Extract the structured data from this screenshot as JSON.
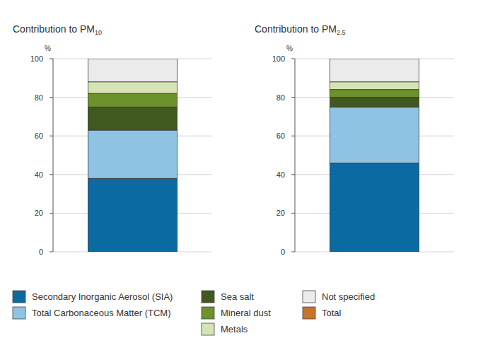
{
  "chart_data": [
    {
      "type": "bar",
      "stacked": true,
      "title": "Contribution to PM10",
      "ylabel": "%",
      "categories": [
        null
      ],
      "ylim": [
        0,
        100
      ],
      "yticks": [
        0,
        20,
        40,
        60,
        80,
        100
      ],
      "grid": true,
      "legend": "bottom",
      "series": [
        {
          "name": "Secondary Inorganic Aerosol (SIA)",
          "color": "#0a6aa1",
          "values": [
            38
          ]
        },
        {
          "name": "Total Carbonaceous Matter (TCM)",
          "color": "#8ec3e3",
          "values": [
            25
          ]
        },
        {
          "name": "Sea salt",
          "color": "#40591f",
          "values": [
            12
          ]
        },
        {
          "name": "Mineral dust",
          "color": "#6d912c",
          "values": [
            7
          ]
        },
        {
          "name": "Metals",
          "color": "#d6e3b3",
          "values": [
            6
          ]
        },
        {
          "name": "Not specified",
          "color": "#ebebeb",
          "values": [
            12
          ]
        },
        {
          "name": "Total",
          "color": "#c8732a",
          "values": [
            null
          ]
        }
      ]
    },
    {
      "type": "bar",
      "stacked": true,
      "title": "Contribution to PM2.5",
      "ylabel": "%",
      "categories": [
        null
      ],
      "ylim": [
        0,
        100
      ],
      "yticks": [
        0,
        20,
        40,
        60,
        80,
        100
      ],
      "grid": true,
      "series": [
        {
          "color": "#0a6aa1",
          "values": [
            46
          ]
        },
        {
          "color": "#8ec3e3",
          "values": [
            29
          ]
        },
        {
          "color": "#40591f",
          "values": [
            5
          ]
        },
        {
          "color": "#6d912c",
          "values": [
            4
          ]
        },
        {
          "color": "#d6e3b3",
          "values": [
            4
          ]
        },
        {
          "color": "#ebebeb",
          "values": [
            12
          ]
        },
        {
          "color": "#c8732a",
          "values": [
            null
          ]
        }
      ]
    }
  ]
}
